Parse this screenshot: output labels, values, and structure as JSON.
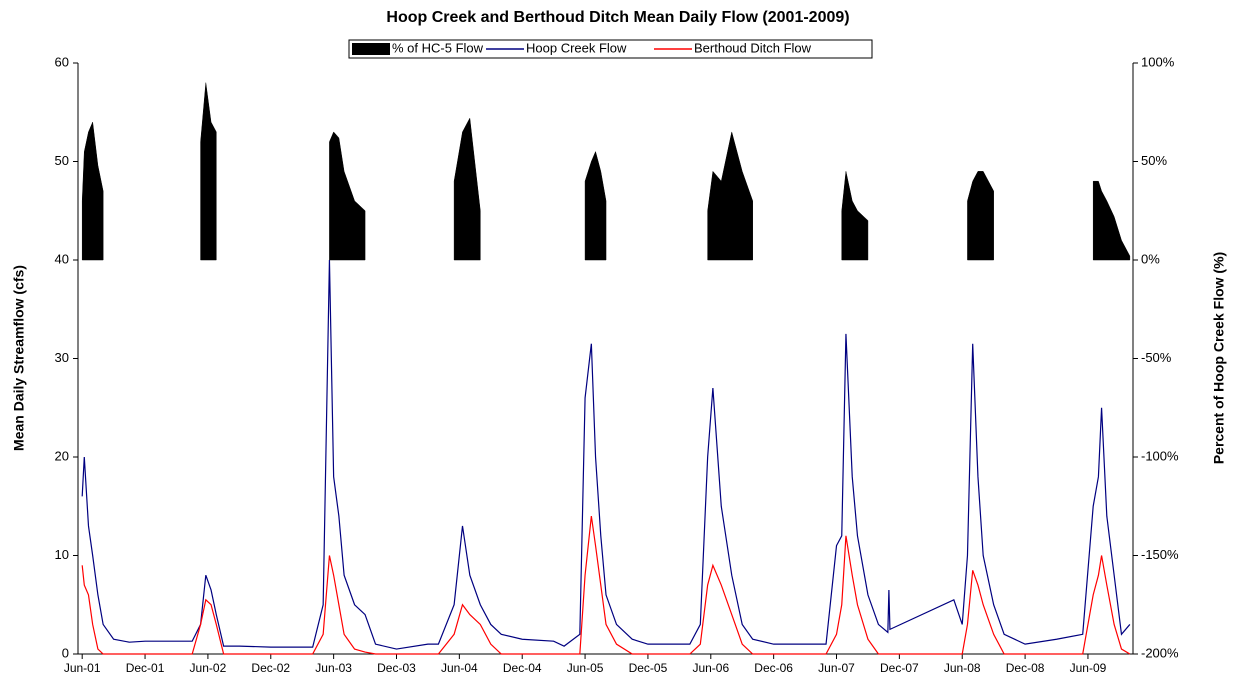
{
  "chart_data": {
    "type": "line",
    "title": "Hoop Creek and Berthoud Ditch Mean Daily Flow (2001-2009)",
    "y_label": "Mean Daily Streamflow (cfs)",
    "y2_label": "Percent of Hoop Creek Flow (%)",
    "x": [
      0,
      0.2,
      0.6,
      1,
      1.5,
      2,
      3,
      4.5,
      6,
      8.5,
      10.5,
      11.3,
      11.8,
      12.3,
      12.8,
      13.5,
      15,
      18,
      21,
      22,
      23,
      23.6,
      24,
      24.5,
      25,
      26,
      27,
      28,
      30,
      33,
      34,
      35.5,
      36.3,
      37,
      38,
      39,
      40,
      42,
      45,
      46,
      47.5,
      48,
      48.6,
      49,
      49.5,
      50,
      51,
      52.5,
      54,
      57,
      58,
      59,
      59.7,
      60.2,
      61,
      62,
      63,
      64,
      66,
      69,
      71,
      72,
      72.5,
      72.9,
      73.5,
      74,
      75,
      76,
      76.9,
      77,
      77.1,
      83.2,
      84,
      84.5,
      85,
      85.5,
      86,
      87,
      88,
      90,
      93,
      95.5,
      96.5,
      97,
      97.3,
      97.8,
      98.5,
      99.2,
      100
    ],
    "series": [
      {
        "name": "% of HC-5 Flow",
        "color": "#000000",
        "axis": "y2",
        "style": "area",
        "values": [
          30,
          55,
          65,
          70,
          48,
          35,
          null,
          null,
          null,
          null,
          null,
          60,
          90,
          70,
          65,
          null,
          null,
          null,
          null,
          null,
          null,
          60,
          65,
          62,
          45,
          30,
          25,
          null,
          null,
          null,
          null,
          40,
          65,
          72,
          25,
          null,
          null,
          null,
          null,
          null,
          null,
          40,
          50,
          55,
          45,
          30,
          null,
          null,
          null,
          null,
          null,
          null,
          25,
          45,
          40,
          65,
          45,
          30,
          null,
          null,
          null,
          null,
          25,
          45,
          30,
          25,
          20,
          null,
          null,
          null,
          null,
          null,
          null,
          30,
          40,
          45,
          45,
          35,
          null,
          null,
          null,
          null,
          40,
          40,
          35,
          30,
          22,
          10,
          2
        ]
      },
      {
        "name": "Hoop Creek Flow",
        "color": "#000080",
        "style": "line",
        "values": [
          16,
          20,
          13,
          10,
          6,
          3,
          1.5,
          1.2,
          1.3,
          1.3,
          1.3,
          3,
          8,
          6.5,
          4,
          0.8,
          0.8,
          0.7,
          0.7,
          0.7,
          5,
          40,
          18,
          14,
          8,
          5,
          4,
          1,
          0.5,
          1,
          1,
          5,
          13,
          8,
          5,
          3,
          2,
          1.5,
          1.3,
          0.8,
          2,
          26,
          31.5,
          20,
          12,
          6,
          3,
          1.5,
          1,
          1,
          1,
          3,
          20,
          27,
          15,
          8,
          3,
          1.5,
          1,
          1,
          1,
          11,
          12,
          32.5,
          18,
          12,
          6,
          3,
          2.2,
          6.5,
          2.5,
          5.5,
          3,
          10,
          31.5,
          18,
          10,
          5,
          2,
          1,
          1.5,
          2,
          15,
          18,
          25,
          14,
          8,
          2,
          3
        ]
      },
      {
        "name": "Berthoud Ditch Flow",
        "color": "#ff0000",
        "style": "line",
        "values": [
          9,
          7,
          6,
          3,
          0.5,
          0,
          0,
          0,
          0,
          0,
          0,
          3,
          5.5,
          5,
          3,
          0,
          0,
          0,
          0,
          0,
          2,
          10,
          8,
          5,
          2,
          0.5,
          0.2,
          0,
          0,
          0,
          0,
          2,
          5,
          4,
          3,
          1,
          0,
          0,
          0,
          0,
          0,
          8,
          14,
          11,
          7,
          3,
          1,
          0,
          0,
          0,
          0,
          1,
          7,
          9,
          7,
          4,
          1,
          0,
          0,
          0,
          0,
          2,
          5,
          12,
          8,
          5,
          1.5,
          0,
          0,
          0,
          0,
          0,
          0,
          3,
          8.5,
          7,
          5,
          2,
          0,
          0,
          0,
          0,
          6,
          8,
          10,
          7,
          3,
          0.5,
          0
        ]
      }
    ],
    "xlim": [
      -0.4,
      100.3
    ],
    "xticks": [
      {
        "value": 0,
        "label": "Jun-01"
      },
      {
        "value": 6,
        "label": "Dec-01"
      },
      {
        "value": 12,
        "label": "Jun-02"
      },
      {
        "value": 18,
        "label": "Dec-02"
      },
      {
        "value": 24,
        "label": "Jun-03"
      },
      {
        "value": 30,
        "label": "Dec-03"
      },
      {
        "value": 36,
        "label": "Jun-04"
      },
      {
        "value": 42,
        "label": "Dec-04"
      },
      {
        "value": 48,
        "label": "Jun-05"
      },
      {
        "value": 54,
        "label": "Dec-05"
      },
      {
        "value": 60,
        "label": "Jun-06"
      },
      {
        "value": 66,
        "label": "Dec-06"
      },
      {
        "value": 72,
        "label": "Jun-07"
      },
      {
        "value": 78,
        "label": "Dec-07"
      },
      {
        "value": 84,
        "label": "Jun-08"
      },
      {
        "value": 90,
        "label": "Dec-08"
      },
      {
        "value": 96,
        "label": "Jun-09"
      }
    ],
    "ylim": [
      0,
      60
    ],
    "yticks": [
      0,
      10,
      20,
      30,
      40,
      50,
      60
    ],
    "y2lim": [
      -200,
      100
    ],
    "y2ticks": [
      {
        "value": -200,
        "label": "-200%"
      },
      {
        "value": -150,
        "label": "-150%"
      },
      {
        "value": -100,
        "label": "-100%"
      },
      {
        "value": -50,
        "label": "-50%"
      },
      {
        "value": 0,
        "label": "0%"
      },
      {
        "value": 50,
        "label": "50%"
      },
      {
        "value": 100,
        "label": "100%"
      }
    ],
    "legend": "top"
  }
}
